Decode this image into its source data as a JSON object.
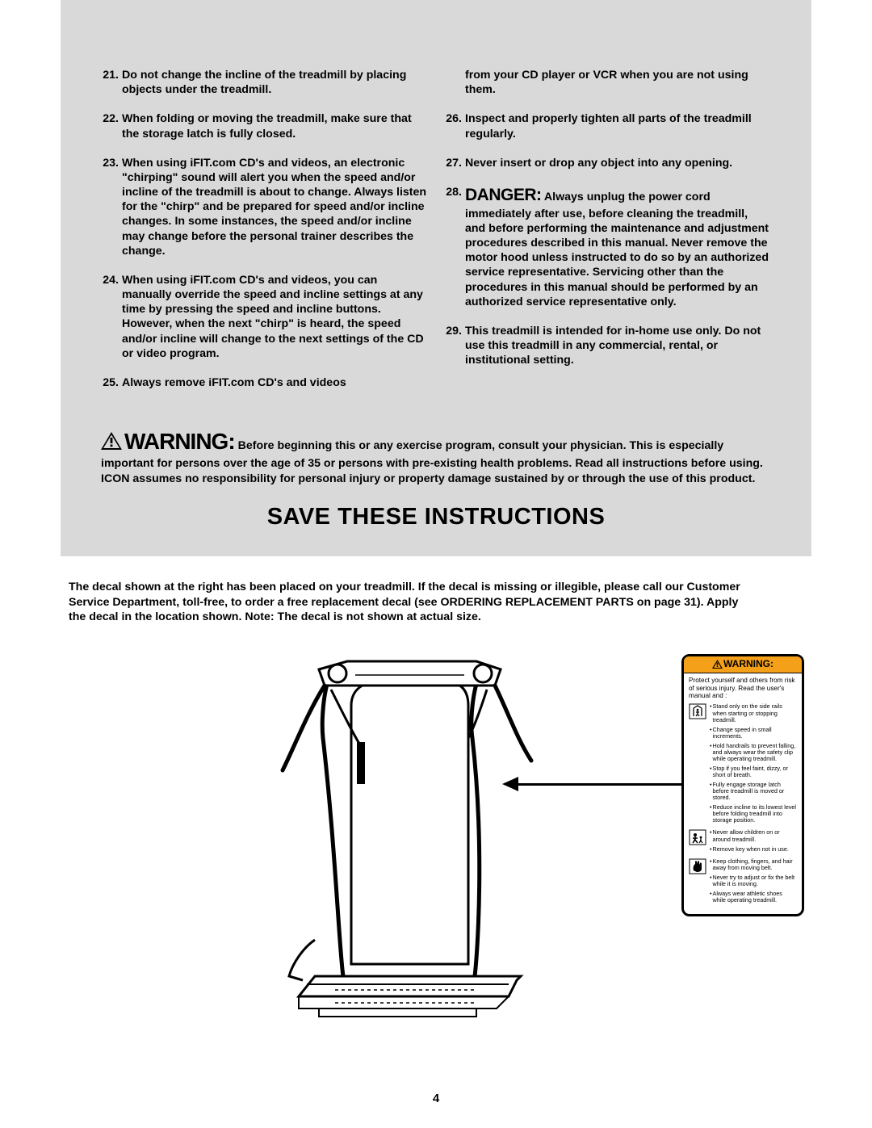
{
  "colors": {
    "gray_bg": "#d9d9d9",
    "page_bg": "#ffffff",
    "decal_orange": "#f4a019",
    "black": "#000000"
  },
  "left_items": [
    {
      "n": "21.",
      "t": "Do not change the incline of the treadmill by placing objects under the treadmill."
    },
    {
      "n": "22.",
      "t": "When folding or moving the treadmill, make sure that the storage latch is fully closed."
    },
    {
      "n": "23.",
      "t": "When using iFIT.com CD's and videos, an electronic \"chirping\" sound will alert you when the speed and/or incline of the treadmill is about to change. Always listen for the \"chirp\" and be prepared for speed and/or incline changes. In some instances, the speed and/or incline may change before the personal trainer describes the change."
    },
    {
      "n": "24.",
      "t": "When using iFIT.com CD's and videos, you can manually override the speed and incline settings at any time by pressing the speed and incline buttons. However, when the next \"chirp\" is heard, the speed and/or incline will change to the next settings of the CD or video program."
    },
    {
      "n": "25.",
      "t": "Always remove iFIT.com CD's and videos"
    }
  ],
  "right_items": [
    {
      "n": "",
      "t": "from your CD player or VCR when you are not using them."
    },
    {
      "n": "26.",
      "t": "Inspect and properly tighten all parts of the treadmill regularly."
    },
    {
      "n": "27.",
      "t": "Never insert or drop any object into any opening."
    },
    {
      "n": "28.",
      "t": "",
      "danger": "DANGER:",
      "after": " Always unplug the power cord immediately after use, before cleaning the treadmill, and before performing the maintenance and adjustment procedures described in this manual. Never remove the motor hood unless instructed to do so by an authorized service representative. Servicing other than the procedures in this manual should be performed by an authorized service representative only."
    },
    {
      "n": "29.",
      "t": "This treadmill is intended for in-home use only. Do not use this treadmill in any commercial, rental, or institutional setting."
    }
  ],
  "warning": {
    "label": "WARNING:",
    "text": " Before beginning this or any exercise program, consult your physician. This is especially important for persons over the age of 35 or persons with pre-existing health problems. Read all instructions before using. ICON assumes no responsibility for personal injury or property damage sustained by or through the use of this product."
  },
  "save_title": "SAVE THESE INSTRUCTIONS",
  "decal_paragraph": "The decal shown at the right has been placed on your treadmill. If the decal is missing or illegible, please call our Customer Service Department, toll-free, to order a free replacement decal (see ORDERING REPLACEMENT PARTS on page 31). Apply the decal in the location shown. Note: The decal is not shown at actual size.",
  "decal": {
    "header": "WARNING:",
    "intro": "Protect yourself and others from risk of serious injury. Read the user's manual and :",
    "groups": [
      {
        "icon": "rails",
        "bullets": [
          "Stand only on the side rails when starting or stopping treadmill.",
          "Change speed in small increments.",
          "Hold handrails to prevent falling, and always wear the safety clip while operating treadmill.",
          "Stop if you feel faint, dizzy, or short of breath.",
          "Fully engage storage latch before treadmill is moved or stored.",
          "Reduce incline to its lowest level before folding treadmill into storage position."
        ]
      },
      {
        "icon": "child",
        "bullets": [
          "Never allow children on or around treadmill.",
          "Remove key when not in use."
        ]
      },
      {
        "icon": "hand",
        "bullets": [
          "Keep clothing, fingers, and hair away from moving belt.",
          "Never try to adjust or fix the belt while it is moving.",
          "Always wear athletic shoes while operating treadmill."
        ]
      }
    ]
  },
  "page_number": "4"
}
